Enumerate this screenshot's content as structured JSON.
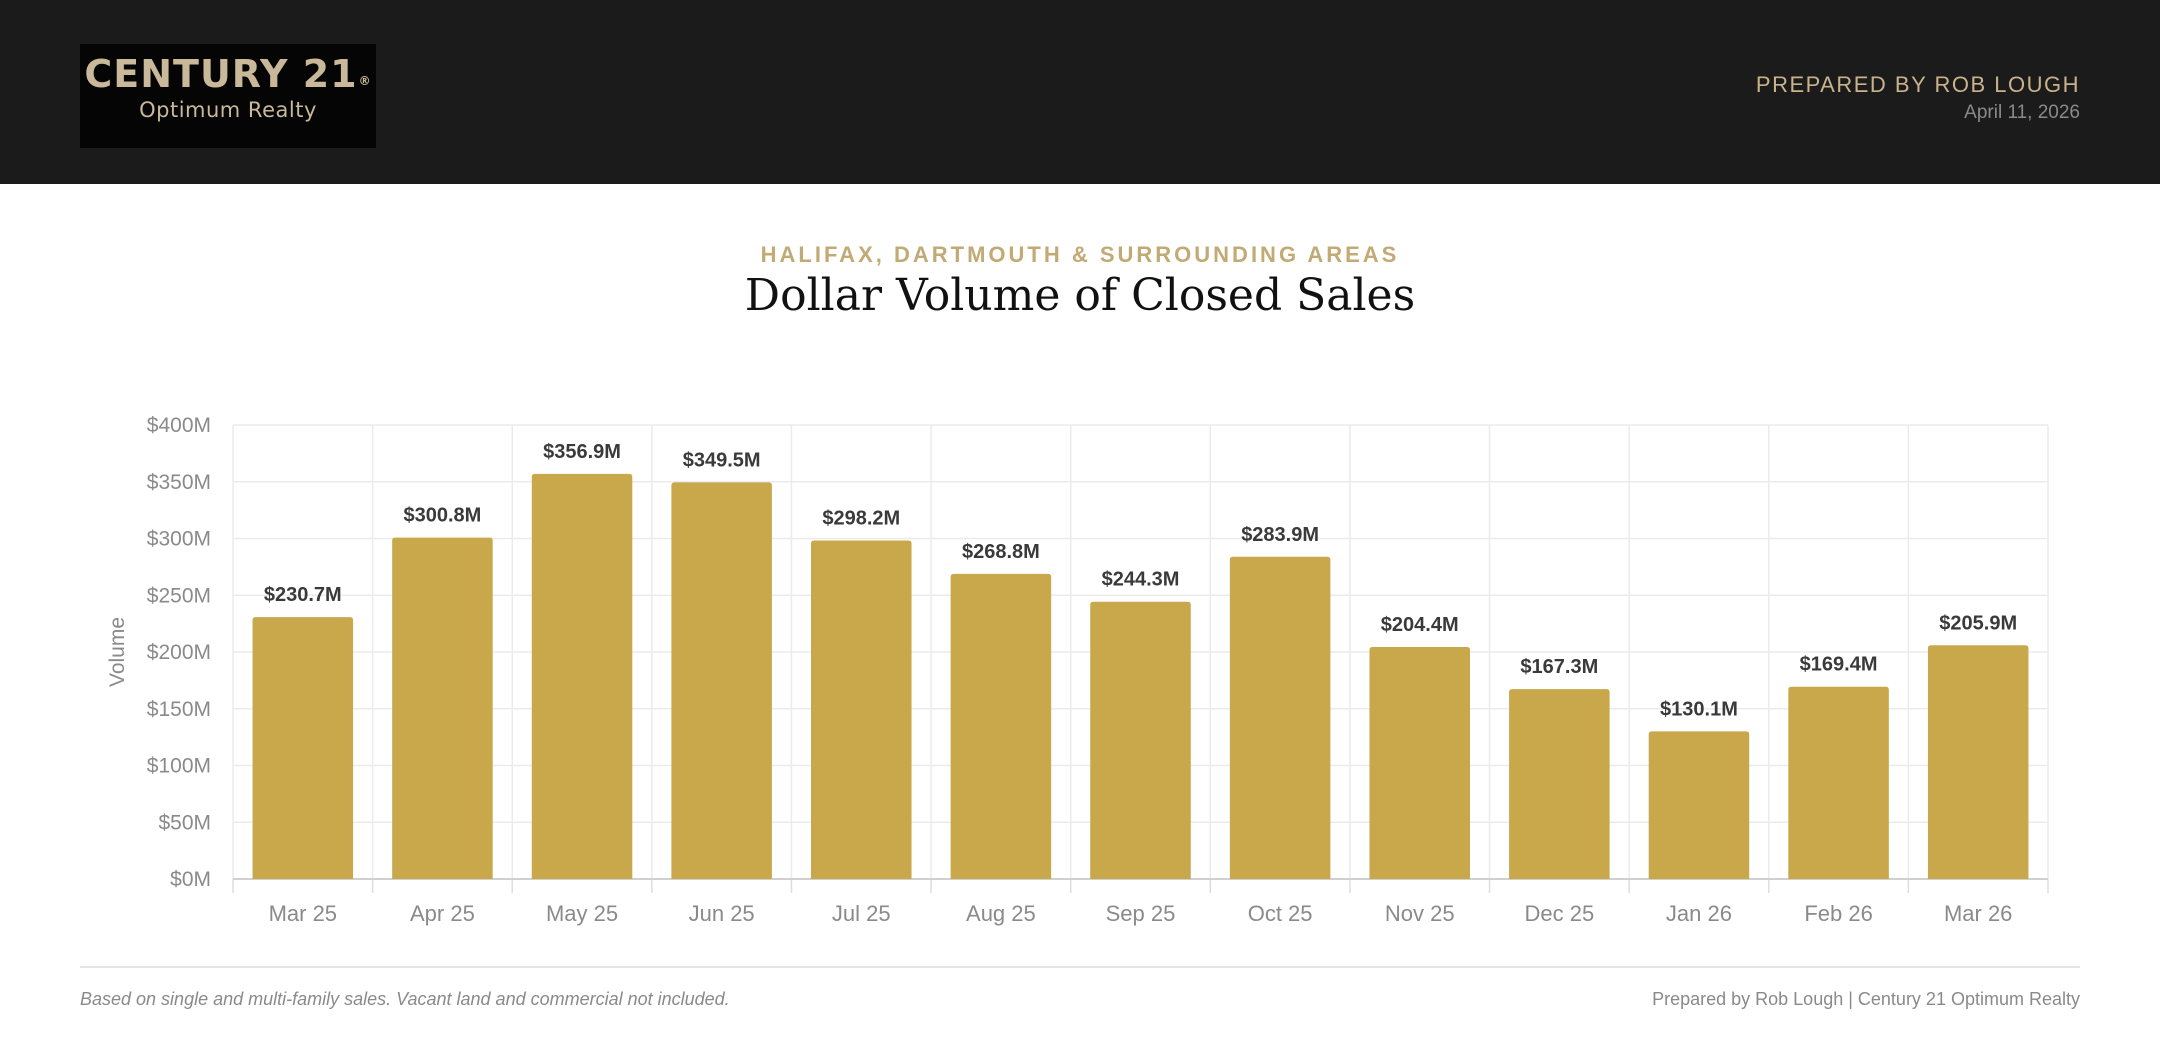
{
  "header": {
    "logo_line1": "CENTURY 21",
    "logo_reg": "®",
    "logo_line2": "Optimum Realty",
    "prepared_by": "PREPARED BY ROB LOUGH",
    "date": "April 11, 2026"
  },
  "colors": {
    "header_bg": "#1b1b1b",
    "bar": "#c8a84b",
    "accent_gold": "#c2aa74"
  },
  "chart_data": {
    "type": "bar",
    "subtitle": "HALIFAX, DARTMOUTH & SURROUNDING AREAS",
    "title": "Dollar Volume of Closed Sales",
    "ylabel": "Volume",
    "xlabel": "",
    "categories": [
      "Mar 25",
      "Apr 25",
      "May 25",
      "Jun 25",
      "Jul 25",
      "Aug 25",
      "Sep 25",
      "Oct 25",
      "Nov 25",
      "Dec 25",
      "Jan 26",
      "Feb 26",
      "Mar 26"
    ],
    "values": [
      230.7,
      300.8,
      356.9,
      349.5,
      298.2,
      268.8,
      244.3,
      283.9,
      204.4,
      167.3,
      130.1,
      169.4,
      205.9
    ],
    "data_labels": [
      "$230.7M",
      "$300.8M",
      "$356.9M",
      "$349.5M",
      "$298.2M",
      "$268.8M",
      "$244.3M",
      "$283.9M",
      "$204.4M",
      "$167.3M",
      "$130.1M",
      "$169.4M",
      "$205.9M"
    ],
    "y_ticks": [
      0,
      50,
      100,
      150,
      200,
      250,
      300,
      350,
      400
    ],
    "y_tick_labels": [
      "$0M",
      "$50M",
      "$100M",
      "$150M",
      "$200M",
      "$250M",
      "$300M",
      "$350M",
      "$400M"
    ],
    "ylim": [
      0,
      400
    ],
    "grid": true,
    "legend": "none"
  },
  "footer": {
    "note": "Based on single and multi-family sales. Vacant land and commercial not included.",
    "credit": "Prepared by Rob Lough | Century 21 Optimum Realty"
  }
}
